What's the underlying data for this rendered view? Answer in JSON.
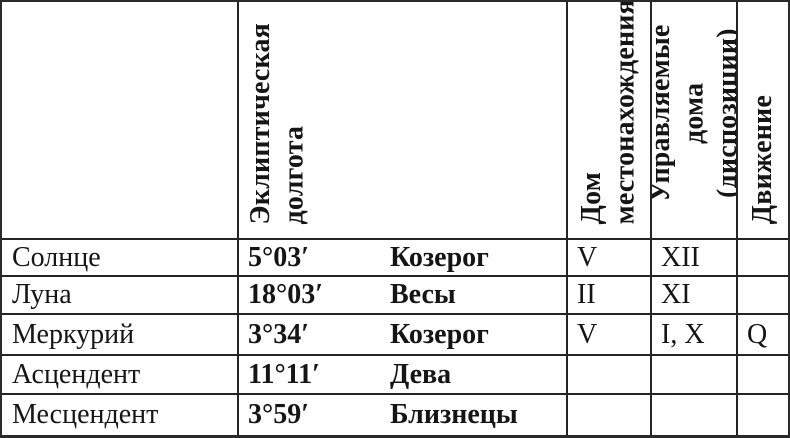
{
  "table": {
    "columns": [
      {
        "label": ""
      },
      {
        "label": "Эклиптическая\nдолгота"
      },
      {
        "label": "Дом\nместонахождения"
      },
      {
        "label": "Управляемые дома\n(диспозиции)"
      },
      {
        "label": "Движение"
      }
    ],
    "rows": [
      {
        "name": "Солнце",
        "longitude": "5°03′",
        "sign": "Козерог",
        "house": "V",
        "ruled": "XII",
        "motion": ""
      },
      {
        "name": "Луна",
        "longitude": "18°03′",
        "sign": "Весы",
        "house": "II",
        "ruled": "XI",
        "motion": ""
      },
      {
        "name": "Меркурий",
        "longitude": "3°34′",
        "sign": "Козерог",
        "house": "V",
        "ruled": "I, X",
        "motion": "Q"
      },
      {
        "name": "Асцендент",
        "longitude": "11°11′",
        "sign": "Дева",
        "house": "",
        "ruled": "",
        "motion": ""
      },
      {
        "name": "Месцендент",
        "longitude": "3°59′",
        "sign": "Близнецы",
        "house": "",
        "ruled": "",
        "motion": ""
      }
    ]
  },
  "colors": {
    "background": "#ffffff",
    "text": "#151515",
    "border": "#242424"
  }
}
